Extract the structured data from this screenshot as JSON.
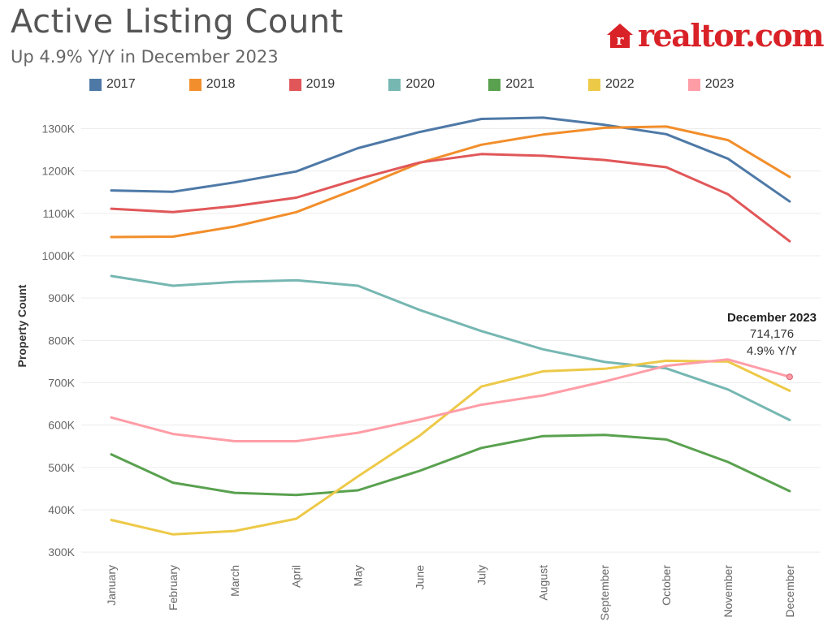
{
  "header": {
    "title": "Active Listing Count",
    "subtitle": "Up 4.9% Y/Y in December 2023",
    "logo_text": "realtor.com",
    "logo_color": "#d92228"
  },
  "chart_data": {
    "type": "line",
    "title": "Active Listing Count",
    "subtitle": "Up 4.9% Y/Y in December 2023",
    "ylabel": "Property Count",
    "xlabel": "",
    "categories": [
      "January",
      "February",
      "March",
      "April",
      "May",
      "June",
      "July",
      "August",
      "September",
      "October",
      "November",
      "December"
    ],
    "y_ticks": [
      300,
      400,
      500,
      600,
      700,
      800,
      900,
      1000,
      1100,
      1200,
      1300
    ],
    "y_tick_labels": [
      "300K",
      "400K",
      "500K",
      "600K",
      "700K",
      "800K",
      "900K",
      "1000K",
      "1100K",
      "1200K",
      "1300K"
    ],
    "ylim": [
      285,
      1345
    ],
    "y_unit": "K",
    "grid": true,
    "legend_position": "top",
    "series": [
      {
        "name": "2017",
        "color": "#4e79a7",
        "values": [
          1154,
          1151,
          1173,
          1199,
          1254,
          1292,
          1323,
          1326,
          1309,
          1287,
          1229,
          1128
        ]
      },
      {
        "name": "2018",
        "color": "#f28e2b",
        "values": [
          1044,
          1045,
          1069,
          1103,
          1159,
          1219,
          1262,
          1286,
          1302,
          1305,
          1273,
          1186
        ]
      },
      {
        "name": "2019",
        "color": "#e15759",
        "values": [
          1111,
          1103,
          1117,
          1137,
          1181,
          1220,
          1240,
          1236,
          1226,
          1209,
          1145,
          1034
        ]
      },
      {
        "name": "2020",
        "color": "#76b7b2",
        "values": [
          952,
          929,
          938,
          942,
          929,
          872,
          822,
          779,
          749,
          734,
          684,
          612
        ]
      },
      {
        "name": "2021",
        "color": "#59a14f",
        "values": [
          531,
          464,
          440,
          435,
          446,
          492,
          546,
          574,
          577,
          566,
          513,
          444
        ]
      },
      {
        "name": "2022",
        "color": "#edc948",
        "values": [
          376,
          342,
          350,
          379,
          479,
          575,
          691,
          727,
          733,
          752,
          750,
          681
        ]
      },
      {
        "name": "2023",
        "color": "#ff9da7",
        "values": [
          618,
          579,
          562,
          562,
          582,
          613,
          648,
          670,
          703,
          740,
          755,
          714
        ]
      }
    ],
    "annotation": {
      "category": "December",
      "series": "2023",
      "line1": "December 2023",
      "line2": "714,176",
      "line3": "4.9% Y/Y"
    }
  }
}
